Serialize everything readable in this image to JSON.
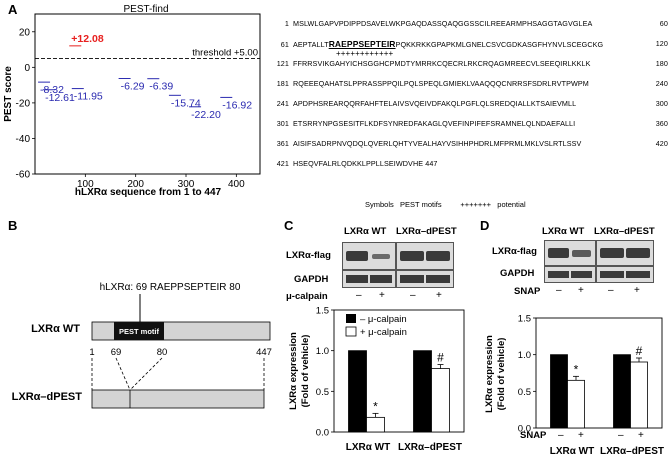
{
  "panels": {
    "A": "A",
    "B": "B",
    "C": "C",
    "D": "D"
  },
  "panelA": {
    "title": "PEST-find",
    "xlabel": "hLXRα sequence from 1 to 447",
    "ylabel": "PEST score",
    "threshold_label": "threshold +5.00",
    "yticks": [
      "20",
      "0",
      "-20",
      "-40",
      "-60"
    ],
    "xticks": [
      "100",
      "200",
      "300",
      "400"
    ]
  },
  "chart_data": [
    {
      "type": "scatter",
      "title": "PEST-find",
      "xlabel": "hLXRα sequence from 1 to 447",
      "ylabel": "PEST score",
      "xlim": [
        0,
        447
      ],
      "ylim": [
        -60,
        30
      ],
      "threshold": 5.0,
      "points": [
        {
          "x": 80,
          "y": 12.08,
          "label": "+12.08",
          "color": "#e8201f"
        },
        {
          "x": 18,
          "y": -8.32,
          "label": "-8.32",
          "color": "#2a2ab0"
        },
        {
          "x": 28,
          "y": -12.61,
          "label": "-12.61",
          "color": "#2a2ab0"
        },
        {
          "x": 85,
          "y": -11.95,
          "label": "-11.95",
          "color": "#2a2ab0"
        },
        {
          "x": 178,
          "y": -6.29,
          "label": "-6.29",
          "color": "#2a2ab0"
        },
        {
          "x": 235,
          "y": -6.39,
          "label": "-6.39",
          "color": "#2a2ab0"
        },
        {
          "x": 278,
          "y": -15.74,
          "label": "-15.74",
          "color": "#2a2ab0"
        },
        {
          "x": 318,
          "y": -22.2,
          "label": "-22.20",
          "color": "#2a2ab0"
        },
        {
          "x": 380,
          "y": -16.92,
          "label": "-16.92",
          "color": "#2a2ab0"
        }
      ]
    },
    {
      "type": "bar",
      "panel": "C",
      "categories": [
        "LXRα WT",
        "LXRα–dPEST"
      ],
      "series": [
        {
          "name": "– μ-calpain",
          "values": [
            1.0,
            1.0
          ],
          "color": "#000000"
        },
        {
          "name": "+ μ-calpain",
          "values": [
            0.18,
            0.78
          ],
          "color": "#ffffff"
        }
      ],
      "ylabel": "LXRα expression (Fold of vehicle)",
      "ylim": [
        0,
        1.5
      ],
      "annotations": [
        "*",
        "#"
      ]
    },
    {
      "type": "bar",
      "panel": "D",
      "categories": [
        "LXRα WT",
        "LXRα–dPEST"
      ],
      "series": [
        {
          "name": "SAP –",
          "values": [
            1.0,
            1.0
          ],
          "color": "#000000"
        },
        {
          "name": "SNAP +",
          "values": [
            0.65,
            0.9
          ],
          "color": "#ffffff"
        }
      ],
      "ylabel": "LXRα expression (Fold of vehicle)",
      "ylim": [
        0,
        1.5
      ],
      "annotations": [
        "*",
        "#"
      ]
    }
  ],
  "sequence": {
    "lines": [
      {
        "start": "1",
        "text": "MSLWLGAPVPDIPPDSAVELWKPGAQDASSQAQGGSSCILREEARMPHSAGGTAGVGLEA",
        "end": "60"
      },
      {
        "start": "61",
        "pre": "AEPTALLT",
        "motif": "RAEPPSEPTEIR",
        "post": "PQKKRKKGPAPKMLGNELCSVCGDKASGFHYNVLSCEGCKG",
        "end": "120"
      },
      {
        "start": "121",
        "text": "FFRRSVIKGAHYICHSGGHCPMDTYMRRKCQECRLRKCRQAGMREECVLSEEQIRLKKLK",
        "end": "180"
      },
      {
        "start": "181",
        "text": "RQEEEQAHATSLPPRASSPPQILPQLSPEQLGMIEKLVAAQQQCNRRSFSDRLRVTPWPM",
        "end": "240"
      },
      {
        "start": "241",
        "text": "APDPHSREARQQRFAHFTELAIVSVQEIVDFAKQLPGFLQLSREDQIALLKTSAIEVMLL",
        "end": "300"
      },
      {
        "start": "301",
        "text": "ETSRRYNPGSESITFLKDFSYNREDFAKAGLQVEFINPIFEFSRAMNELQLNDAEFALLI",
        "end": "360"
      },
      {
        "start": "361",
        "text": "AISIFSADRPNVQDQLQVERLQHTYVEALHAYVSIHHPHDRLMFPRMLMKLVSLRTLSSV",
        "end": "420"
      },
      {
        "start": "421",
        "text": "HSEQVFALRLQDKKLPPLLSEIWDVHE 447",
        "end": ""
      }
    ],
    "plus_marks": "++++++++++++",
    "legend": {
      "symbols": "Symbols",
      "pest_motifs": "PEST motifs",
      "plus": "+++++++",
      "potential": "potential"
    }
  },
  "panelB": {
    "motif_title": "hLXRα: 69 RAEPPSEPTEIR 80",
    "wt_label": "LXRα WT",
    "dpest_label": "LXRα–dPEST",
    "motif_box": "PEST motif",
    "pos1": "1",
    "pos69": "69",
    "pos80": "80",
    "pos447": "447"
  },
  "panelC": {
    "col_wt": "LXRα WT",
    "col_dpest": "LXRα–dPEST",
    "row_flag": "LXRα-flag",
    "row_gapdh": "GAPDH",
    "row_treat": "μ-calpain",
    "signs": [
      "–",
      "+",
      "–",
      "+"
    ],
    "legend_minus": "– μ-calpain",
    "legend_plus": "+ μ-calpain",
    "ylabel1": "LXRα expression",
    "ylabel2": "(Fold of vehicle)",
    "yticks": [
      "1.5",
      "1.0",
      "0.5",
      "0.0"
    ],
    "xcat1": "LXRα WT",
    "xcat2": "LXRα–dPEST",
    "star": "*",
    "hash": "#"
  },
  "panelD": {
    "col_wt": "LXRα WT",
    "col_dpest": "LXRα–dPEST",
    "row_flag": "LXRα-flag",
    "row_gapdh": "GAPDH",
    "row_treat": "SNAP",
    "signs": [
      "–",
      "+",
      "–",
      "+"
    ],
    "ylabel1": "LXRα expression",
    "ylabel2": "(Fold of vehicle)",
    "yticks": [
      "1.5",
      "1.0",
      "0.5",
      "0.0"
    ],
    "xtreat": "SNAP",
    "xcat1": "LXRα WT",
    "xcat2": "LXRα–dPEST",
    "star": "*",
    "hash": "#"
  }
}
